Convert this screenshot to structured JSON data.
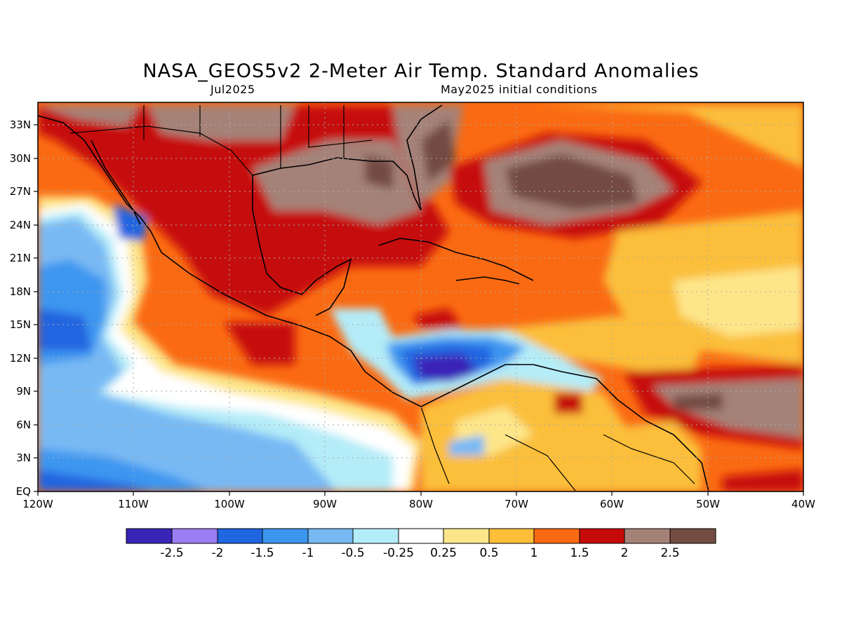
{
  "title": "NASA_GEOS5v2 2-Meter Air Temp. Standard Anomalies",
  "subtitle_left": "Jul2025",
  "subtitle_right": "May2025 initial conditions",
  "map": {
    "region": "Gulf of Mexico, Central America, Caribbean",
    "lat_range": [
      0,
      35
    ],
    "lon_range": [
      -120,
      -40
    ],
    "y_ticks": [
      "33N",
      "30N",
      "27N",
      "24N",
      "21N",
      "18N",
      "15N",
      "12N",
      "9N",
      "6N",
      "3N",
      "EQ"
    ],
    "x_ticks": [
      "120W",
      "110W",
      "100W",
      "90W",
      "80W",
      "70W",
      "60W",
      "50W",
      "40W"
    ]
  },
  "colorbar": {
    "colors": [
      "#3a24b8",
      "#9a7df2",
      "#2065e0",
      "#3c96f0",
      "#78b9f4",
      "#b4ecf8",
      "#ffffff",
      "#fde68a",
      "#fbbf3a",
      "#fa6a12",
      "#c60a0a",
      "#a58278",
      "#734c42"
    ],
    "labels": [
      "-2.5",
      "-2",
      "-1.5",
      "-1",
      "-0.5",
      "-0.25",
      "0.25",
      "0.5",
      "1",
      "1.5",
      "2",
      "2.5"
    ]
  }
}
